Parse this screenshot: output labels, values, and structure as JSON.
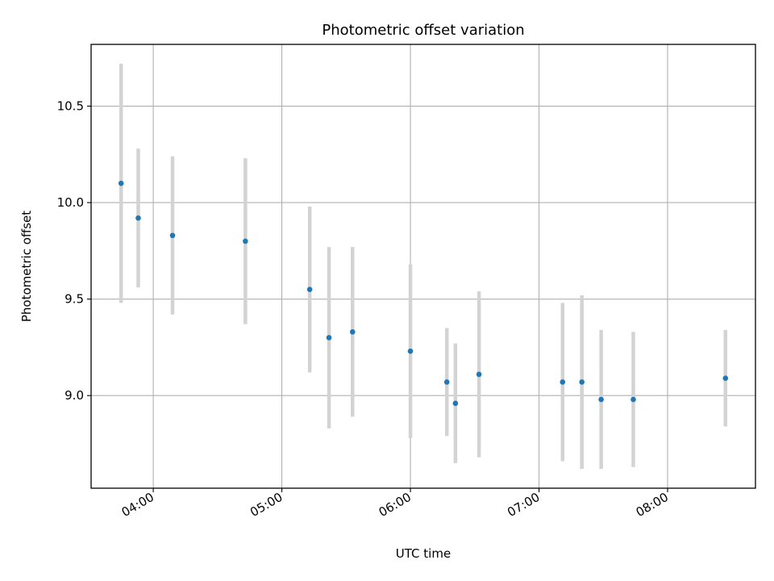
{
  "chart_data": {
    "type": "scatter",
    "title": "Photometric offset variation",
    "xlabel": "UTC time",
    "ylabel": "Photometric offset",
    "x_ticks": [
      "04:00",
      "05:00",
      "06:00",
      "07:00",
      "08:00"
    ],
    "y_ticks": [
      "9.0",
      "9.5",
      "10.0",
      "10.5"
    ],
    "xlim": [
      "03:31",
      "08:41"
    ],
    "ylim": [
      8.52,
      10.82
    ],
    "grid": true,
    "colors": {
      "point": "#1f77b4",
      "errorbar": "#d3d3d3",
      "grid": "#b0b0b0"
    },
    "points": [
      {
        "x": "03:45",
        "y": 10.1,
        "err": 0.62
      },
      {
        "x": "03:53",
        "y": 9.92,
        "err": 0.36
      },
      {
        "x": "04:09",
        "y": 9.83,
        "err": 0.41
      },
      {
        "x": "04:43",
        "y": 9.8,
        "err": 0.43
      },
      {
        "x": "05:13",
        "y": 9.55,
        "err": 0.43
      },
      {
        "x": "05:22",
        "y": 9.3,
        "err": 0.47
      },
      {
        "x": "05:33",
        "y": 9.33,
        "err": 0.44
      },
      {
        "x": "06:00",
        "y": 9.23,
        "err": 0.45
      },
      {
        "x": "06:17",
        "y": 9.07,
        "err": 0.28
      },
      {
        "x": "06:21",
        "y": 8.96,
        "err": 0.31
      },
      {
        "x": "06:32",
        "y": 9.11,
        "err": 0.43
      },
      {
        "x": "07:11",
        "y": 9.07,
        "err": 0.41
      },
      {
        "x": "07:20",
        "y": 9.07,
        "err": 0.45
      },
      {
        "x": "07:29",
        "y": 8.98,
        "err": 0.36
      },
      {
        "x": "07:44",
        "y": 8.98,
        "err": 0.35
      },
      {
        "x": "08:27",
        "y": 9.09,
        "err": 0.25
      }
    ]
  }
}
